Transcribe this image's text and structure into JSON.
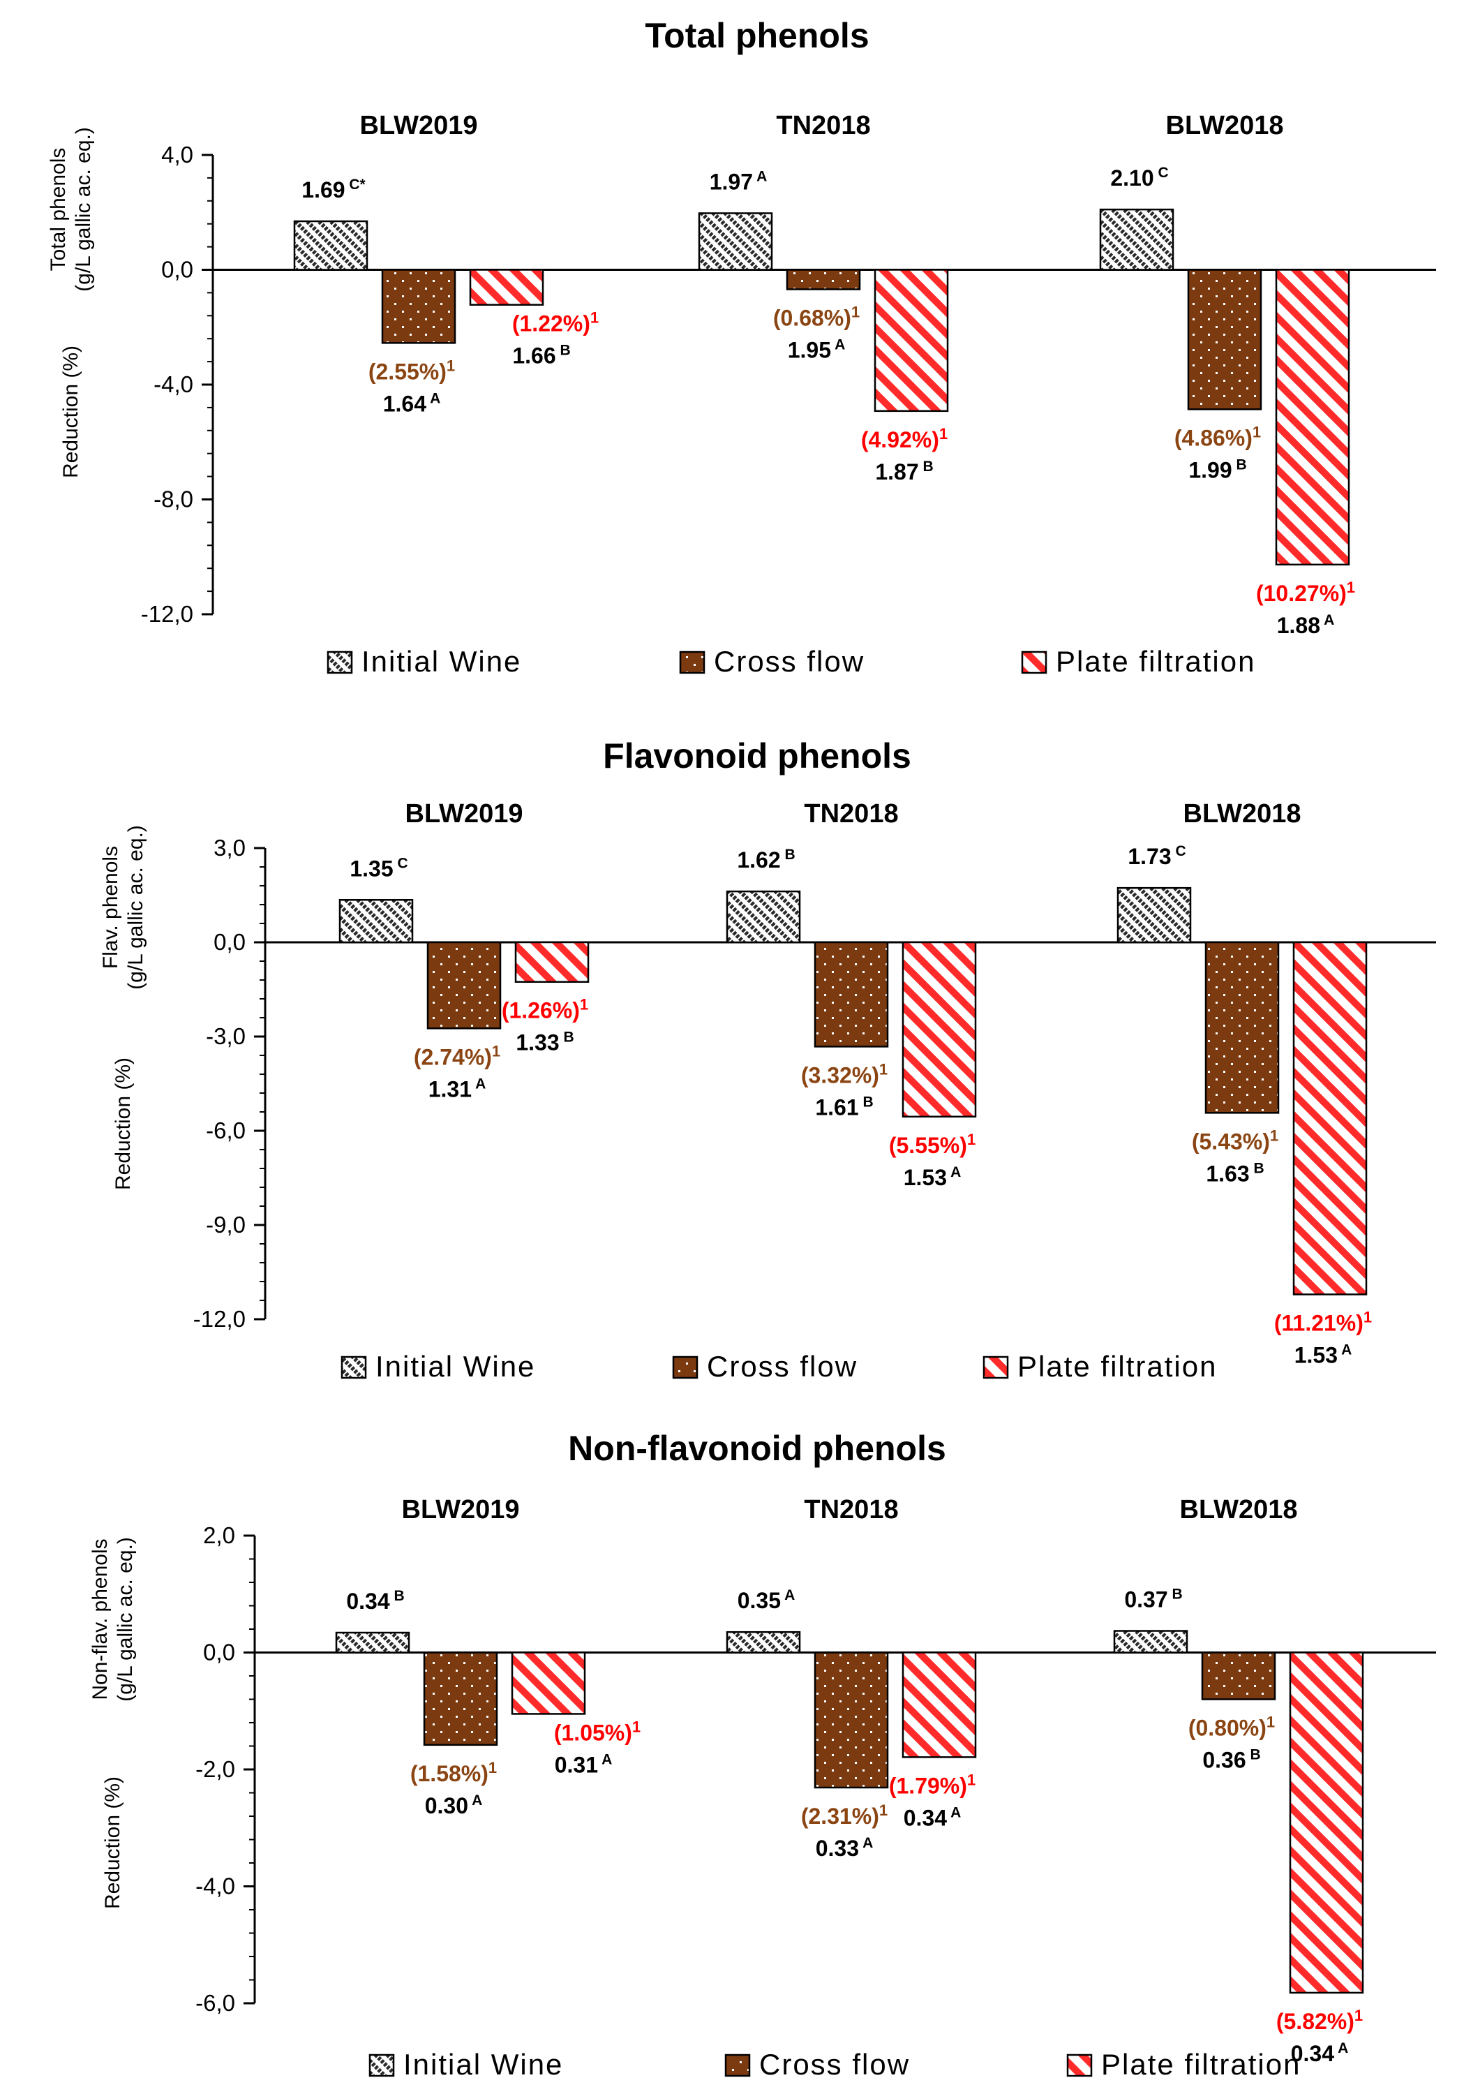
{
  "colors": {
    "initial": "#2a2a2a",
    "cross": "#7b3a10",
    "plate": "#ff2a2a",
    "cross_label": "#8b4513",
    "plate_label": "#ff0000"
  },
  "legend": [
    "Initial Wine",
    "Cross flow",
    "Plate filtration"
  ],
  "groups": [
    "BLW2019",
    "TN2018",
    "BLW2018"
  ],
  "chart_data": [
    {
      "type": "bar",
      "title": "Total phenols",
      "ylabel_top": [
        "Total phenols",
        "(g/L gallic ac. eq.)"
      ],
      "ylabel_bottom": "Reduction (%)",
      "ylim": [
        -12,
        4
      ],
      "ticks": [
        "4,0",
        "0,0",
        "-4,0",
        "-8,0",
        "-12,0"
      ],
      "tick_values": [
        4,
        0,
        -4,
        -8,
        -12
      ],
      "categories": [
        "BLW2019",
        "TN2018",
        "BLW2018"
      ],
      "series": [
        {
          "name": "Initial Wine",
          "values": [
            1.69,
            1.97,
            2.1
          ],
          "labels": [
            "1.69 C*",
            "1.97 A",
            "2.10 C"
          ],
          "pct": [
            "",
            "",
            ""
          ]
        },
        {
          "name": "Cross flow",
          "values": [
            -2.55,
            -0.68,
            -4.86
          ],
          "labels": [
            "1.64 A",
            "1.95 A",
            "1.99 B"
          ],
          "pct": [
            "(2.55%)¹",
            "(0.68%)¹",
            "(4.86%)¹"
          ]
        },
        {
          "name": "Plate filtration",
          "values": [
            -1.22,
            -4.92,
            -10.27
          ],
          "labels": [
            "1.66 B",
            "1.87 B",
            "1.88 A"
          ],
          "pct": [
            "(1.22%)¹",
            "(4.92%)¹",
            "(10.27%)¹"
          ]
        }
      ]
    },
    {
      "type": "bar",
      "title": "Flavonoid phenols",
      "ylabel_top": [
        "Flav. phenols",
        "(g/L gallic ac. eq.)"
      ],
      "ylabel_bottom": "Reduction (%)",
      "ylim": [
        -12,
        3
      ],
      "ticks": [
        "3,0",
        "0,0",
        "-3,0",
        "-6,0",
        "-9,0",
        "-12,0"
      ],
      "tick_values": [
        3,
        0,
        -3,
        -6,
        -9,
        -12
      ],
      "categories": [
        "BLW2019",
        "TN2018",
        "BLW2018"
      ],
      "series": [
        {
          "name": "Initial Wine",
          "values": [
            1.35,
            1.62,
            1.73
          ],
          "labels": [
            "1.35 C",
            "1.62 B",
            "1.73 C"
          ],
          "pct": [
            "",
            "",
            ""
          ]
        },
        {
          "name": "Cross flow",
          "values": [
            -2.74,
            -3.32,
            -5.43
          ],
          "labels": [
            "1.31 A",
            "1.61 B",
            "1.63 B"
          ],
          "pct": [
            "(2.74%)¹",
            "(3.32%)¹",
            "(5.43%)¹"
          ]
        },
        {
          "name": "Plate filtration",
          "values": [
            -1.26,
            -5.55,
            -11.21
          ],
          "labels": [
            "1.33 B",
            "1.53 A",
            "1.53 A"
          ],
          "pct": [
            "(1.26%)¹",
            "(5.55%)¹",
            "(11.21%)¹"
          ]
        }
      ]
    },
    {
      "type": "bar",
      "title": "Non-flavonoid phenols",
      "ylabel_top": [
        "Non-flav. phenols",
        "(g/L gallic ac. eq.)"
      ],
      "ylabel_bottom": "Reduction (%)",
      "ylim": [
        -6,
        2
      ],
      "ticks": [
        "2,0",
        "0,0",
        "-2,0",
        "-4,0",
        "-6,0"
      ],
      "tick_values": [
        2,
        0,
        -2,
        -4,
        -6
      ],
      "categories": [
        "BLW2019",
        "TN2018",
        "BLW2018"
      ],
      "series": [
        {
          "name": "Initial Wine",
          "values": [
            0.34,
            0.35,
            0.37
          ],
          "labels": [
            "0.34 B",
            "0.35 A",
            "0.37 B"
          ],
          "pct": [
            "",
            "",
            ""
          ]
        },
        {
          "name": "Cross flow",
          "values": [
            -1.58,
            -2.31,
            -0.8
          ],
          "labels": [
            "0.30 A",
            "0.33 A",
            "0.36 B"
          ],
          "pct": [
            "(1.58%)¹",
            "(2.31%)¹",
            "(0.80%)¹"
          ]
        },
        {
          "name": "Plate filtration",
          "values": [
            -1.05,
            -1.79,
            -5.82
          ],
          "labels": [
            "0.31 A",
            "0.34 A",
            "0.34 A"
          ],
          "pct": [
            "(1.05%)¹",
            "(1.79%)¹",
            "(5.82%)¹"
          ]
        }
      ]
    }
  ]
}
